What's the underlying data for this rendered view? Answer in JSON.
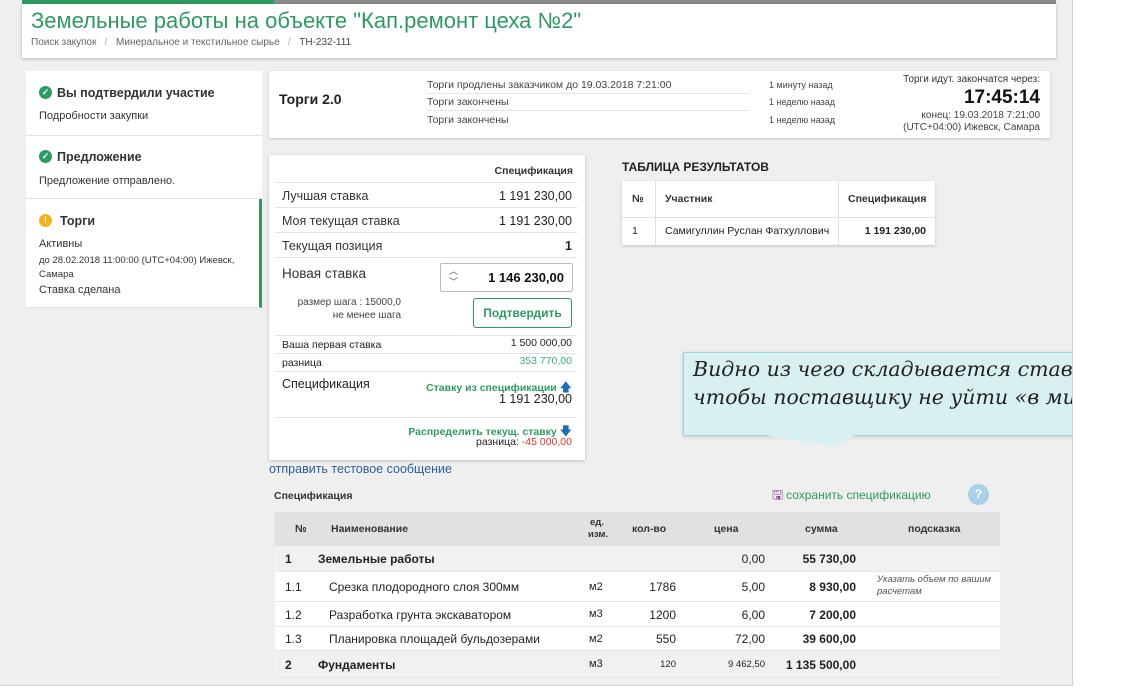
{
  "header": {
    "title": "Земельные работы на объекте \"Кап.ремонт цеха №2\"",
    "breadcrumb": [
      "Поиск закупок",
      "Минеральное и текстильное сырье",
      "ТН-232-111"
    ]
  },
  "sidebar": {
    "steps": [
      {
        "title": "Вы подтвердили участие",
        "lines": [
          "Подробности закупки"
        ]
      },
      {
        "title": "Предложение",
        "lines": [
          "Предложение отправлено."
        ]
      },
      {
        "title": "Торги",
        "lines": [
          "Активны",
          "до 28.02.2018 11:00:00 (UTC+04:00) Ижевск,",
          "Самара",
          "Ставка сделана"
        ]
      }
    ]
  },
  "status": {
    "name": "Торги 2.0",
    "events": [
      {
        "text": "Торги продлены заказчиком до 19.03.2018 7:21:00",
        "ago": "1 минуту назад"
      },
      {
        "text": "Торги закончены",
        "ago": "1 неделю назад"
      },
      {
        "text": "Торги закончены",
        "ago": "1 неделю назад"
      }
    ],
    "timer_label": "Торги идут. закончатся через:",
    "timer": "17:45:14",
    "end": "конец: 19.03.2018 7:21:00",
    "tz": "(UTC+04:00) Ижевск, Самара"
  },
  "bid": {
    "column_header": "Спецификация",
    "best_label": "Лучшая ставка",
    "best_value": "1 191 230,00",
    "my_label": "Моя текущая ставка",
    "my_value": "1 191 230,00",
    "position_label": "Текущая позиция",
    "position_value": "1",
    "new_label": "Новая ставка",
    "new_value": "1 146 230,00",
    "step_size": "размер шага : 15000,0",
    "step_min": "не менее шага",
    "confirm": "Подтвердить",
    "first_label": "Ваша первая ставка",
    "first_value": "1 500 000,00",
    "diff_label": "разница",
    "diff_value": "353 770,00",
    "spec_label": "Спецификация",
    "spec_link": "Ставку из спецификации",
    "spec_value": "1 191 230,00",
    "distribute_link": "Распределить текущ. ставку",
    "distribute_diff_label": "разница:",
    "distribute_diff_value": "-45 000,00"
  },
  "results": {
    "title": "ТАБЛИЦА РЕЗУЛЬТАТОВ",
    "headers": [
      "№",
      "Участник",
      "Спецификация"
    ],
    "rows": [
      {
        "n": "1",
        "participant": "Самигуллин Руслан Фатхуллович",
        "value": "1 191 230,00"
      }
    ]
  },
  "test_message": "отправить тестовое сообщение",
  "spec": {
    "label": "Спецификация",
    "save": "сохранить спецификацию",
    "help": "?",
    "headers": {
      "n": "№",
      "name": "Наименование",
      "unit": "ед.",
      "unit2": "изм.",
      "qty": "кол-во",
      "price": "цена",
      "sum": "сумма",
      "hint": "подсказка"
    },
    "rows": [
      {
        "n": "1",
        "name": "Земельные работы",
        "unit": "",
        "qty": "",
        "price": "0,00",
        "sum": "55 730,00",
        "hint": "",
        "hint2": "",
        "group": true
      },
      {
        "n": "1.1",
        "name": "Срезка плодородного слоя 300мм",
        "unit": "м2",
        "qty": "1786",
        "price": "5,00",
        "sum": "8 930,00",
        "hint": "Указать объем по вашим",
        "hint2": "расчетам",
        "group": false
      },
      {
        "n": "1.2",
        "name": "Разработка грунта экскаватором",
        "unit": "м3",
        "qty": "1200",
        "price": "6,00",
        "sum": "7 200,00",
        "hint": "",
        "hint2": "",
        "group": false
      },
      {
        "n": "1.3",
        "name": "Планировка площадей бульдозерами",
        "unit": "м2",
        "qty": "550",
        "price": "72,00",
        "sum": "39 600,00",
        "hint": "",
        "hint2": "",
        "group": false
      },
      {
        "n": "2",
        "name": "Фундаменты",
        "unit": "м3",
        "qty": "120",
        "price": "9 462,50",
        "sum": "1 135 500,00",
        "hint": "",
        "hint2": "",
        "group": true
      }
    ]
  },
  "annotation": {
    "line1": "Видно из чего складывается ставка",
    "line2": "чтобы поставщику не уйти «в минус»"
  },
  "colors": {
    "accent": "#2e9a62",
    "link": "#2a5f98",
    "negative": "#d9342b",
    "diff": "#3aa88e",
    "callout": "#d9f0f1"
  }
}
